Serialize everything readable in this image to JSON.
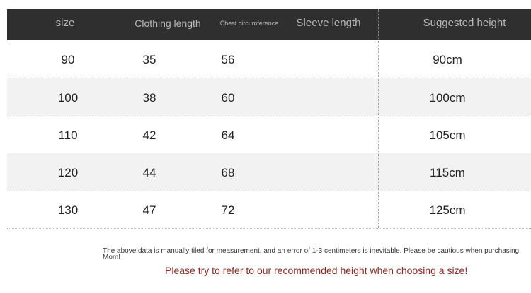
{
  "headers": [
    "size",
    "Clothing length",
    "Chest circumference",
    "Sleeve length",
    "Suggested height"
  ],
  "rows": [
    {
      "size": "90",
      "clothing_length": "35",
      "chest": "56",
      "sleeve": "",
      "height": "90cm"
    },
    {
      "size": "100",
      "clothing_length": "38",
      "chest": "60",
      "sleeve": "",
      "height": "100cm"
    },
    {
      "size": "110",
      "clothing_length": "42",
      "chest": "64",
      "sleeve": "",
      "height": "105cm"
    },
    {
      "size": "120",
      "clothing_length": "44",
      "chest": "68",
      "sleeve": "",
      "height": "115cm"
    },
    {
      "size": "130",
      "clothing_length": "47",
      "chest": "72",
      "sleeve": "",
      "height": "125cm"
    }
  ],
  "note": "The above data is manually tiled for measurement, and an error of 1-3 centimeters is inevitable. Please be cautious when purchasing, Mom!",
  "tip": "Please try to refer to our recommended height when choosing a size!",
  "colors": {
    "header_bg": "#2f2f2f",
    "tip": "#8a2b22",
    "alt_row": "#f2f2f2"
  }
}
